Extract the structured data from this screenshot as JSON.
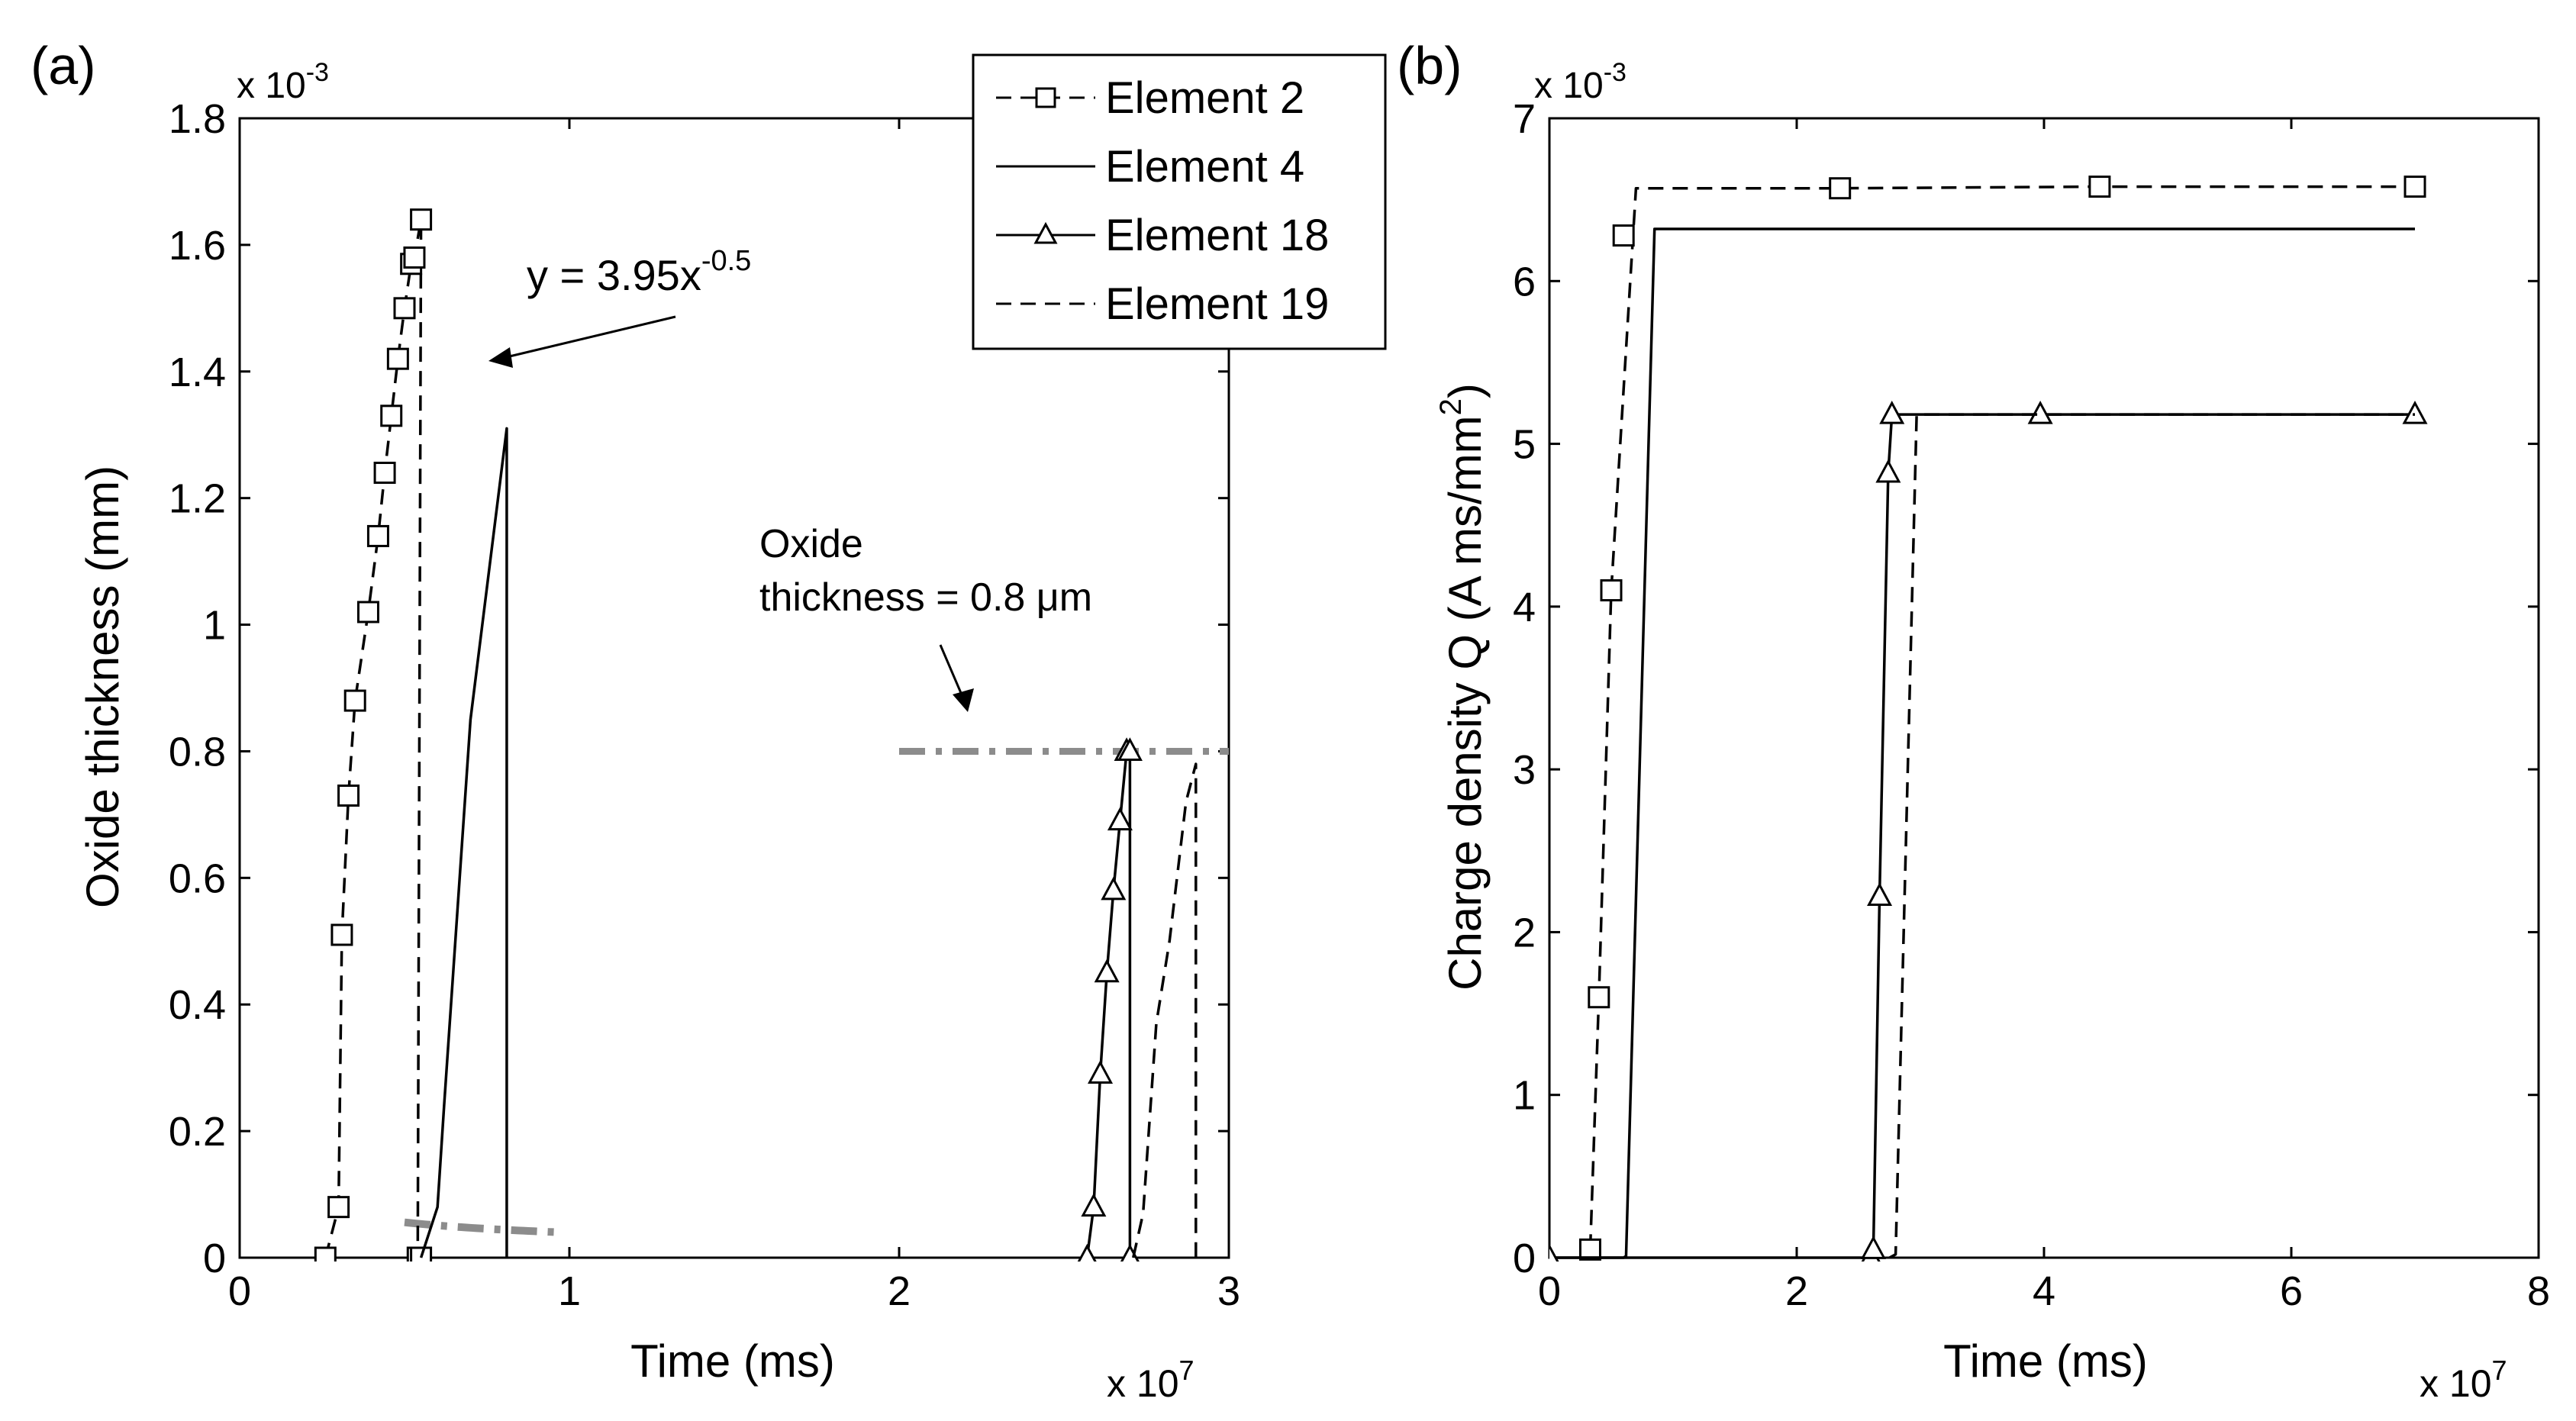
{
  "chart_data": [
    {
      "type": "line",
      "panel_label": "(a)",
      "xlabel": "Time (ms)",
      "ylabel": "Oxide thickness (mm)",
      "x_multiplier": "x 10",
      "x_multiplier_exp": "7",
      "y_multiplier": "x 10",
      "y_multiplier_exp": "-3",
      "xlim": [
        0,
        3
      ],
      "ylim": [
        0,
        1.8
      ],
      "xticks": [
        0,
        1,
        2,
        3
      ],
      "xtick_labels": [
        "0",
        "1",
        "2",
        "3"
      ],
      "yticks": [
        0,
        0.2,
        0.4,
        0.6,
        0.8,
        1.0,
        1.2,
        1.4,
        1.6,
        1.8
      ],
      "ytick_labels": [
        "0",
        "0.2",
        "0.4",
        "0.6",
        "0.8",
        "1",
        "1.2",
        "1.4",
        "1.6",
        "1.8"
      ],
      "series": [
        {
          "name": "Element 2",
          "style": "dashed",
          "marker": "square",
          "x": [
            0.26,
            0.3,
            0.31,
            0.33,
            0.35,
            0.39,
            0.42,
            0.44,
            0.46,
            0.48,
            0.5,
            0.52,
            0.53,
            0.55,
            0.54,
            0.55
          ],
          "y": [
            0.0,
            0.08,
            0.51,
            0.73,
            0.88,
            1.02,
            1.14,
            1.24,
            1.33,
            1.42,
            1.5,
            1.57,
            1.58,
            1.64,
            0.0,
            0.0
          ]
        },
        {
          "name": "Element 4",
          "style": "solid",
          "marker": "none",
          "x": [
            0.55,
            0.6,
            0.62,
            0.7,
            0.81,
            0.81
          ],
          "y": [
            0.0,
            0.08,
            0.24,
            0.85,
            1.31,
            0.0
          ]
        },
        {
          "name": "Element 18",
          "style": "solid",
          "marker": "triangle",
          "x": [
            2.57,
            2.59,
            2.61,
            2.63,
            2.65,
            2.67,
            2.69,
            2.7,
            2.7
          ],
          "y": [
            0.0,
            0.08,
            0.29,
            0.45,
            0.58,
            0.69,
            0.8,
            0.8,
            0.0
          ]
        },
        {
          "name": "Element 19",
          "style": "dashed",
          "marker": "none",
          "x": [
            2.71,
            2.74,
            2.78,
            2.82,
            2.87,
            2.9,
            2.9
          ],
          "y": [
            0.0,
            0.07,
            0.37,
            0.5,
            0.72,
            0.78,
            0.0
          ]
        }
      ],
      "fit_curve": {
        "name": "power-law fit",
        "equation": "y = 3.95x",
        "equation_exp": "-0.5",
        "x_range": [
          0.5,
          0.97
        ]
      },
      "threshold_line": {
        "y": 0.8,
        "x_range": [
          2.0,
          3.0
        ]
      },
      "annotations": {
        "fit_label": "y = 3.95x",
        "fit_label_exp": "-0.5",
        "oxide_line1": "Oxide",
        "oxide_line2": "thickness = 0.8 μm"
      },
      "legend": {
        "position": "top-right",
        "entries": [
          "Element 2",
          "Element 4",
          "Element 18",
          "Element 19"
        ]
      }
    },
    {
      "type": "line",
      "panel_label": "(b)",
      "xlabel": "Time (ms)",
      "ylabel": "Charge density Q (A ms/mm",
      "ylabel_sup": "2",
      "ylabel_end": ")",
      "x_multiplier": "x 10",
      "x_multiplier_exp": "7",
      "y_multiplier": "x 10",
      "y_multiplier_exp": "-3",
      "xlim": [
        0,
        8
      ],
      "ylim": [
        0,
        7
      ],
      "xticks": [
        0,
        2,
        4,
        6,
        8
      ],
      "xtick_labels": [
        "0",
        "2",
        "4",
        "6",
        "8"
      ],
      "yticks": [
        0,
        1,
        2,
        3,
        4,
        5,
        6,
        7
      ],
      "ytick_labels": [
        "0",
        "1",
        "2",
        "3",
        "4",
        "5",
        "6",
        "7"
      ],
      "series": [
        {
          "name": "Element 2",
          "style": "dashed",
          "marker": "square",
          "x": [
            0.33,
            0.4,
            0.5,
            0.7,
            2.35,
            4.45,
            7.0
          ],
          "y": [
            0.05,
            1.6,
            4.1,
            6.57,
            6.57,
            6.58,
            6.58
          ],
          "marker_x": [
            0.33,
            0.4,
            0.5,
            0.6,
            2.35,
            4.45,
            7.0
          ],
          "marker_y": [
            0.05,
            1.6,
            4.1,
            6.28,
            6.57,
            6.58,
            6.58
          ]
        },
        {
          "name": "Element 4",
          "style": "solid",
          "marker": "none",
          "x": [
            0,
            0.6,
            0.62,
            0.85,
            7.0
          ],
          "y": [
            0,
            0,
            0.01,
            6.32,
            6.32
          ]
        },
        {
          "name": "Element 18",
          "style": "solid",
          "marker": "triangle",
          "x": [
            0,
            2.6,
            2.62,
            2.67,
            2.74,
            2.77,
            3.97,
            7.0
          ],
          "y": [
            0,
            0,
            0.05,
            2.22,
            4.82,
            5.18,
            5.18,
            5.18
          ]
        },
        {
          "name": "Element 19",
          "style": "dashed",
          "marker": "none",
          "x": [
            2.75,
            2.8,
            2.97,
            7.0
          ],
          "y": [
            0,
            0.02,
            5.18,
            5.18
          ]
        }
      ]
    }
  ]
}
